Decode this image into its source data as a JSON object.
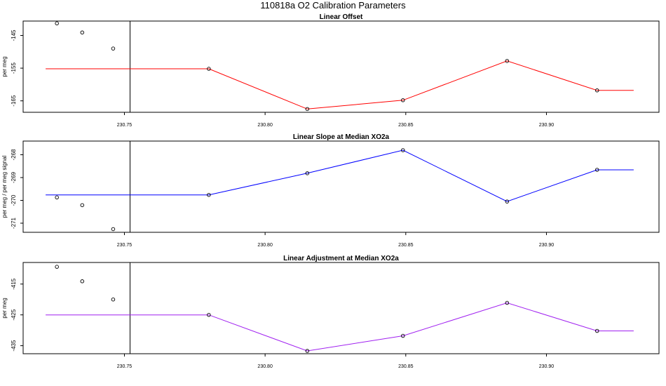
{
  "figure": {
    "title": "110818a   O2 Calibration Parameters"
  },
  "chart_data": [
    {
      "type": "line",
      "title": "Linear Offset",
      "xlabel": "",
      "ylabel": "per meg",
      "xlim": [
        230.714,
        230.94
      ],
      "ylim": [
        -168.5,
        -140.6
      ],
      "xticks": [
        230.75,
        230.8,
        230.85,
        230.9
      ],
      "xtick_labels": [
        "230.75",
        "230.80",
        "230.85",
        "230.90"
      ],
      "yticks": [
        -145,
        -155,
        -165
      ],
      "ytick_labels": [
        "-145",
        "-155",
        "-165"
      ],
      "vline_x": 230.752,
      "line_color": "#ff0000",
      "points_color": "#000000",
      "series": [
        {
          "x": [
            230.722,
            230.78,
            230.815,
            230.849,
            230.886,
            230.918,
            230.931
          ],
          "y": [
            -155.2,
            -155.2,
            -167.5,
            -164.8,
            -152.8,
            -161.8,
            -161.8
          ]
        }
      ],
      "circles": [
        {
          "x": 230.78,
          "y": -155.2
        },
        {
          "x": 230.815,
          "y": -167.5
        },
        {
          "x": 230.849,
          "y": -164.8
        },
        {
          "x": 230.886,
          "y": -152.8
        },
        {
          "x": 230.918,
          "y": -161.8
        }
      ],
      "points": [
        {
          "x": 230.726,
          "y": -141.3
        },
        {
          "x": 230.735,
          "y": -144.1
        },
        {
          "x": 230.746,
          "y": -149.0
        }
      ]
    },
    {
      "type": "line",
      "title": "Linear Slope at Median XO2a",
      "xlabel": "",
      "ylabel": "per meg / per meg signal",
      "xlim": [
        230.714,
        230.94
      ],
      "ylim": [
        -271.4,
        -267.4
      ],
      "xticks": [
        230.75,
        230.8,
        230.85,
        230.9
      ],
      "xtick_labels": [
        "230.75",
        "230.80",
        "230.85",
        "230.90"
      ],
      "yticks": [
        -268,
        -269,
        -270,
        -271
      ],
      "ytick_labels": [
        "-268",
        "-269",
        "-270",
        "-271"
      ],
      "vline_x": 230.752,
      "line_color": "#0000ff",
      "points_color": "#000000",
      "series": [
        {
          "x": [
            230.722,
            230.78,
            230.815,
            230.849,
            230.886,
            230.918,
            230.931
          ],
          "y": [
            -269.76,
            -269.76,
            -268.81,
            -267.8,
            -270.05,
            -268.66,
            -268.66
          ]
        }
      ],
      "circles": [
        {
          "x": 230.78,
          "y": -269.76
        },
        {
          "x": 230.815,
          "y": -268.81
        },
        {
          "x": 230.849,
          "y": -267.8
        },
        {
          "x": 230.886,
          "y": -270.05
        },
        {
          "x": 230.918,
          "y": -268.66
        }
      ],
      "points": [
        {
          "x": 230.726,
          "y": -269.87
        },
        {
          "x": 230.735,
          "y": -270.21
        },
        {
          "x": 230.746,
          "y": -271.26
        }
      ]
    },
    {
      "type": "line",
      "title": "Linear Adjustment at Median XO2a",
      "xlabel": "",
      "ylabel": "per meg",
      "xlim": [
        230.714,
        230.94
      ],
      "ylim": [
        -437.6,
        -408.0
      ],
      "xticks": [
        230.75,
        230.8,
        230.85,
        230.9
      ],
      "xtick_labels": [
        "230.75",
        "230.80",
        "230.85",
        "230.90"
      ],
      "yticks": [
        -415,
        -425,
        -435
      ],
      "ytick_labels": [
        "-415",
        "-425",
        "-435"
      ],
      "vline_x": 230.752,
      "line_color": "#a020f0",
      "points_color": "#000000",
      "series": [
        {
          "x": [
            230.722,
            230.78,
            230.815,
            230.849,
            230.886,
            230.918,
            230.931
          ],
          "y": [
            -425.0,
            -425.0,
            -436.7,
            -431.8,
            -421.1,
            -430.2,
            -430.2
          ]
        }
      ],
      "circles": [
        {
          "x": 230.78,
          "y": -425.0
        },
        {
          "x": 230.815,
          "y": -436.7
        },
        {
          "x": 230.849,
          "y": -431.8
        },
        {
          "x": 230.886,
          "y": -421.1
        },
        {
          "x": 230.918,
          "y": -430.2
        }
      ],
      "points": [
        {
          "x": 230.726,
          "y": -409.4
        },
        {
          "x": 230.735,
          "y": -414.1
        },
        {
          "x": 230.746,
          "y": -420.0
        }
      ]
    }
  ]
}
